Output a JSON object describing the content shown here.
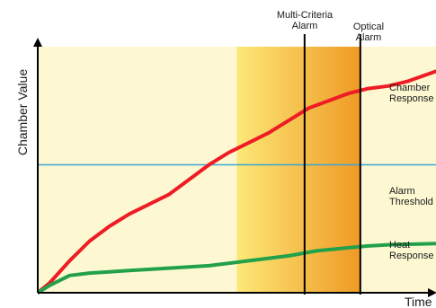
{
  "chart_data": {
    "type": "line",
    "xlabel": "Time",
    "ylabel": "Chamber Value",
    "xlim": [
      0,
      100
    ],
    "ylim": [
      0,
      100
    ],
    "grid": false,
    "legend": "none",
    "colors": {
      "background": "#fdf8d2",
      "highlight_start": "#fce878",
      "highlight_end": "#ef9a24",
      "chamber_line": "#ee1c24",
      "heat_line": "#22a14a",
      "threshold_line": "#3aa3d6",
      "marker_line": "#000000"
    },
    "series": [
      {
        "name": "Chamber Response",
        "label_lines": [
          "Chamber",
          "Response"
        ],
        "color": "#ee1c24",
        "x": [
          0,
          3,
          8,
          13,
          18,
          23,
          28,
          33,
          38,
          43,
          48,
          53,
          58,
          63,
          68,
          73,
          78,
          83,
          88,
          93,
          100
        ],
        "y": [
          0,
          4,
          13,
          21,
          27,
          32,
          36,
          40,
          46,
          52,
          57,
          61,
          65,
          70,
          75,
          78,
          81,
          83,
          84,
          86,
          90
        ]
      },
      {
        "name": "Heat Response",
        "label_lines": [
          "Heat",
          "Response"
        ],
        "color": "#22a14a",
        "x": [
          0,
          3,
          8,
          13,
          18,
          23,
          33,
          43,
          53,
          63,
          70,
          76,
          83,
          88,
          100
        ],
        "y": [
          0,
          3,
          7,
          8,
          8.5,
          9,
          10,
          11,
          13,
          15,
          17,
          18,
          19,
          19.5,
          20
        ]
      }
    ],
    "threshold": {
      "label_lines": [
        "Alarm",
        "Threshold"
      ],
      "y": 52
    },
    "markers": [
      {
        "label_lines": [
          "Multi-Criteria",
          "Alarm"
        ],
        "x": 67
      },
      {
        "label_lines": [
          "Optical",
          "Alarm"
        ],
        "x": 81
      }
    ],
    "highlight_band": {
      "x_start": 50,
      "x_end": 81
    }
  }
}
